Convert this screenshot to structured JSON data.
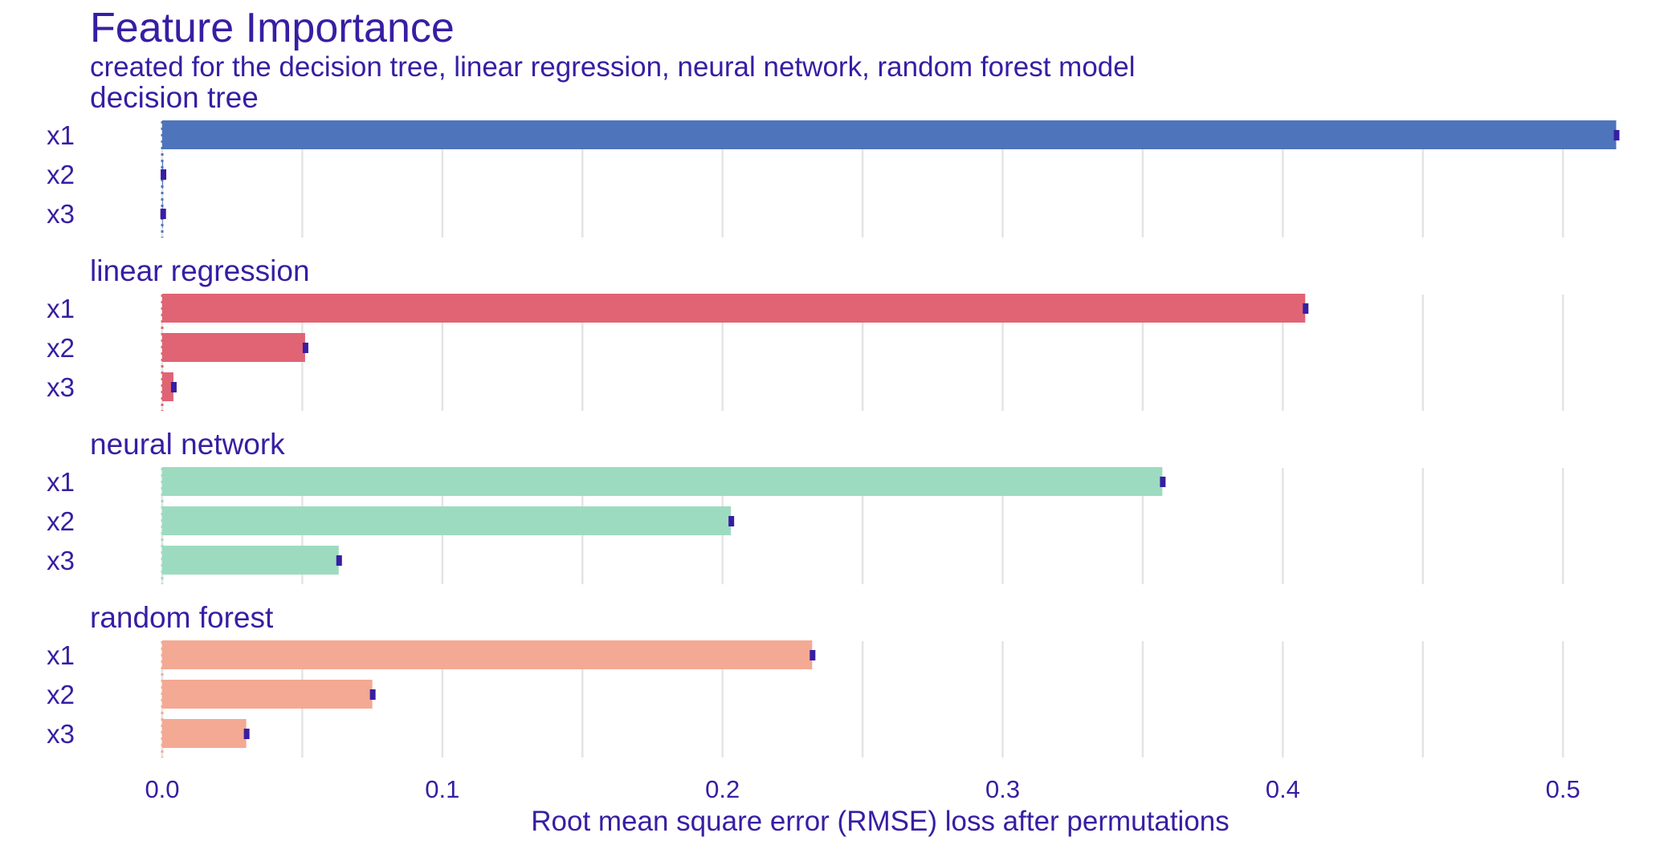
{
  "chart_data": {
    "type": "bar",
    "orientation": "horizontal",
    "title": "Feature Importance",
    "subtitle": "created for the decision tree, linear regression, neural network, random forest model",
    "xlabel": "Root mean square error (RMSE) loss after permutations",
    "xlim": [
      0,
      0.52
    ],
    "x_ticks": [
      "0.0",
      "0.1",
      "0.2",
      "0.3",
      "0.4",
      "0.5"
    ],
    "grid": true,
    "legend": "none",
    "colors": {
      "text": "#371ea3",
      "grid": "#e4e4e4",
      "error_bar": "#371ea3"
    },
    "panels": [
      {
        "model": "decision tree",
        "color": "#4e74bb",
        "baseline": 0,
        "variables": [
          "x1",
          "x2",
          "x3"
        ],
        "values": [
          0.519,
          0.0003,
          0.0002
        ]
      },
      {
        "model": "linear regression",
        "color": "#e06474",
        "baseline": 0,
        "variables": [
          "x1",
          "x2",
          "x3"
        ],
        "values": [
          0.408,
          0.051,
          0.004
        ]
      },
      {
        "model": "neural network",
        "color": "#9ddbc0",
        "baseline": 0,
        "variables": [
          "x1",
          "x2",
          "x3"
        ],
        "values": [
          0.357,
          0.203,
          0.063
        ]
      },
      {
        "model": "random forest",
        "color": "#f3a993",
        "baseline": 0,
        "variables": [
          "x1",
          "x2",
          "x3"
        ],
        "values": [
          0.232,
          0.075,
          0.03
        ]
      }
    ]
  }
}
